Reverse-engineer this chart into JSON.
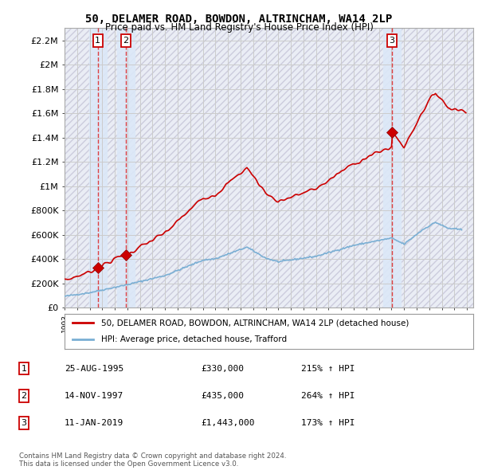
{
  "title1": "50, DELAMER ROAD, BOWDON, ALTRINCHAM, WA14 2LP",
  "title2": "Price paid vs. HM Land Registry's House Price Index (HPI)",
  "ylabel_ticks": [
    "£0",
    "£200K",
    "£400K",
    "£600K",
    "£800K",
    "£1M",
    "£1.2M",
    "£1.4M",
    "£1.6M",
    "£1.8M",
    "£2M",
    "£2.2M"
  ],
  "ytick_values": [
    0,
    200000,
    400000,
    600000,
    800000,
    1000000,
    1200000,
    1400000,
    1600000,
    1800000,
    2000000,
    2200000
  ],
  "ymax": 2300000,
  "xmin": 1993.0,
  "xmax": 2025.5,
  "sale_dates": [
    1995.647,
    1997.873,
    2019.036
  ],
  "sale_prices": [
    330000,
    435000,
    1443000
  ],
  "sale_labels": [
    "1",
    "2",
    "3"
  ],
  "legend_line1": "50, DELAMER ROAD, BOWDON, ALTRINCHAM, WA14 2LP (detached house)",
  "legend_line2": "HPI: Average price, detached house, Trafford",
  "table_entries": [
    [
      "1",
      "25-AUG-1995",
      "£330,000",
      "215% ↑ HPI"
    ],
    [
      "2",
      "14-NOV-1997",
      "£435,000",
      "264% ↑ HPI"
    ],
    [
      "3",
      "11-JAN-2019",
      "£1,443,000",
      "173% ↑ HPI"
    ]
  ],
  "footer": "Contains HM Land Registry data © Crown copyright and database right 2024.\nThis data is licensed under the Open Government Licence v3.0.",
  "line_color_red": "#cc0000",
  "line_color_blue": "#7aafd4",
  "grid_color": "#cccccc",
  "hatch_bg": "#e8eaf0",
  "plot_bg": "#f0f4ff",
  "sale_band_color": "#dce8f8"
}
